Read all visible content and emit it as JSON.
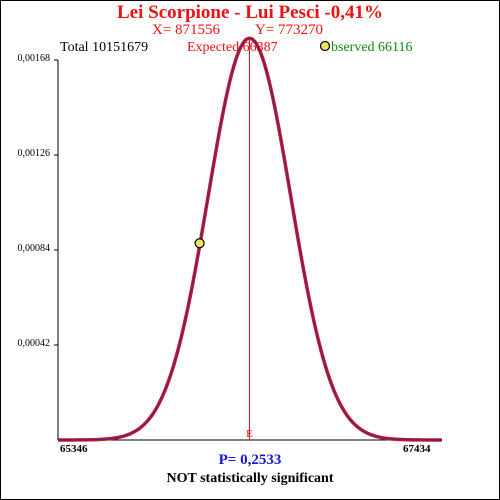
{
  "header": {
    "title": "Lei Scorpione - Lui Pesci  -0,41%",
    "x_text": "X= 871556",
    "y_text": "Y= 773270",
    "total_text": "Total  10151679",
    "expected_text": "Expected  66387",
    "observed_text": "bserved  66116"
  },
  "footer": {
    "p_text": "P= 0,2533",
    "significance": "NOT statistically significant"
  },
  "colors": {
    "title": "#ee1111",
    "curve_outer": "#dd1111",
    "curve_inner": "#3a2fa0",
    "expected_line": "#dd1111",
    "observed_marker": "#e8e860",
    "p_text": "#1616d6",
    "observed_text": "#118811"
  },
  "chart_data": {
    "type": "line",
    "title": "Lei Scorpione - Lui Pesci  -0,41%",
    "x_tick_labels": [
      "65346",
      "67434"
    ],
    "y_tick_labels": [
      "0,00042",
      "0,00084",
      "0,00126",
      "0,00168"
    ],
    "x_range": [
      65346,
      67434
    ],
    "y_range": [
      0,
      0.00168
    ],
    "distribution": {
      "mean": 66387,
      "sd": 224.6,
      "peak_density": 0.001776
    },
    "expected": {
      "x": 66387,
      "label": "E"
    },
    "observed": {
      "x": 66116,
      "y": 0.00087
    }
  }
}
